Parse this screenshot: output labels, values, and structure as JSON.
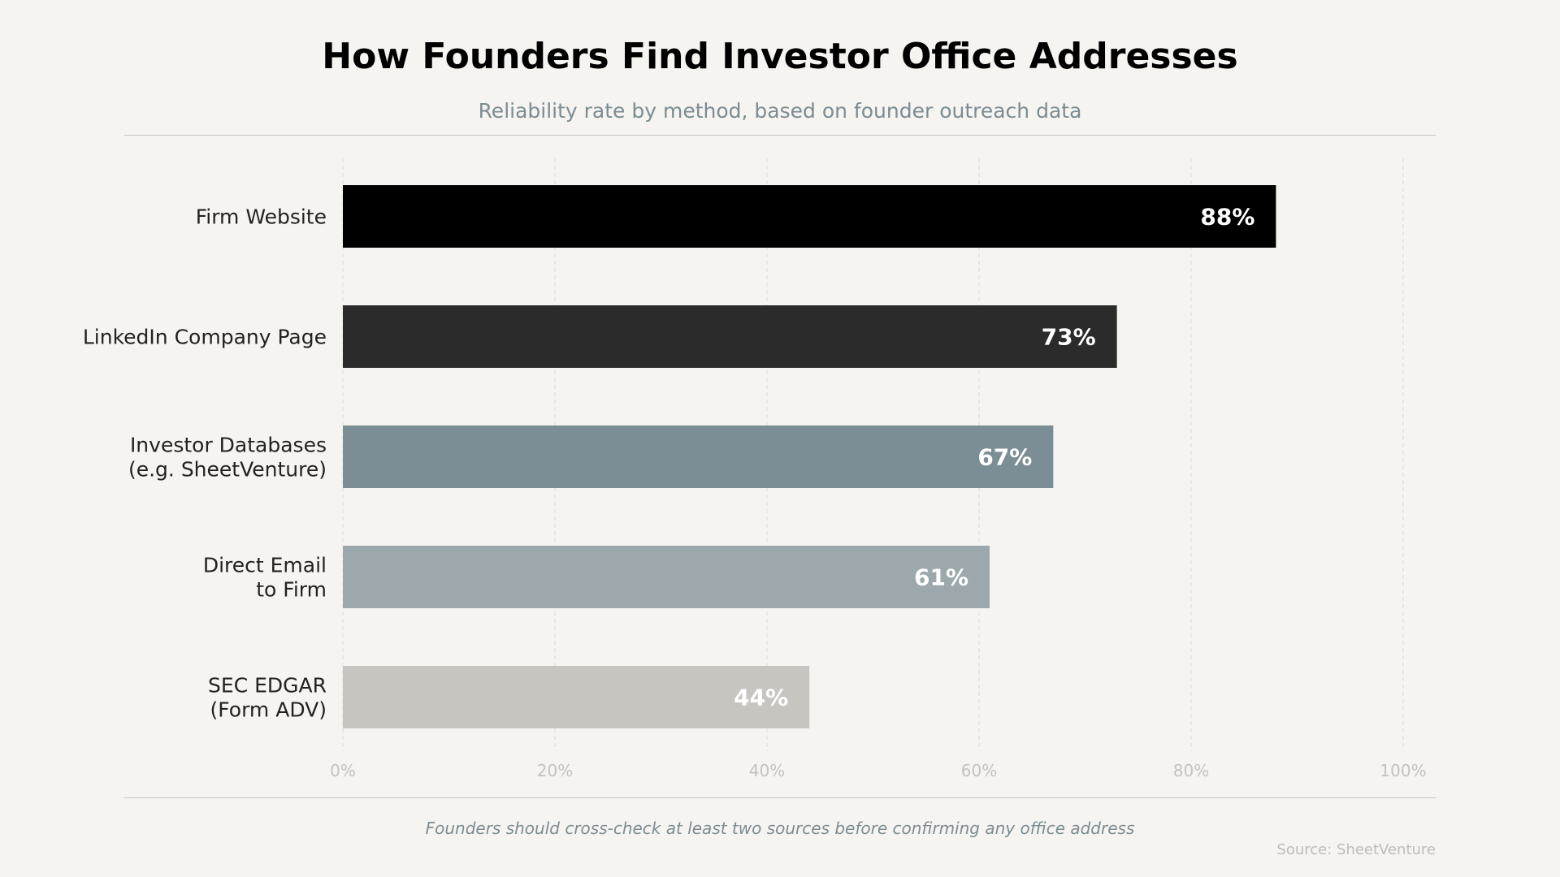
{
  "header": {
    "title": "How Founders Find Investor Office Addresses",
    "subtitle": "Reliability rate by method, based on founder outreach data"
  },
  "footer": {
    "note": "Founders should cross-check at least two sources before confirming any office address",
    "source": "Source: SheetVenture"
  },
  "chart_data": {
    "type": "bar",
    "orientation": "horizontal",
    "title": "How Founders Find Investor Office Addresses",
    "subtitle": "Reliability rate by method, based on founder outreach data",
    "categories": [
      [
        "Firm Website"
      ],
      [
        "LinkedIn Company Page"
      ],
      [
        "Investor Databases",
        "(e.g. SheetVenture)"
      ],
      [
        "Direct Email",
        "to Firm"
      ],
      [
        "SEC EDGAR",
        "(Form ADV)"
      ]
    ],
    "values": [
      88,
      73,
      67,
      61,
      44
    ],
    "value_labels": [
      "88%",
      "73%",
      "67%",
      "61%",
      "44%"
    ],
    "bar_colors": [
      "#000000",
      "#2b2b2b",
      "#7b8e95",
      "#9ca8ac",
      "#c8c5c0"
    ],
    "xlim": [
      0,
      100
    ],
    "xticks": [
      0,
      20,
      40,
      60,
      80,
      100
    ],
    "xtick_labels": [
      "0%",
      "20%",
      "40%",
      "60%",
      "80%",
      "100%"
    ],
    "grid": "vertical dashed",
    "legend": "none"
  }
}
